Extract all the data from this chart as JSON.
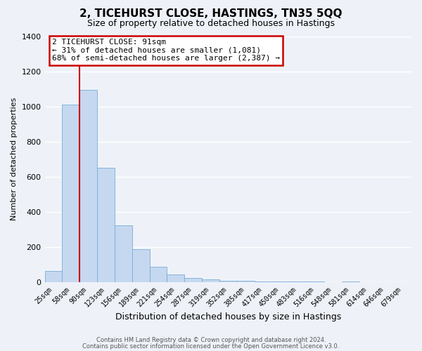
{
  "title": "2, TICEHURST CLOSE, HASTINGS, TN35 5QQ",
  "subtitle": "Size of property relative to detached houses in Hastings",
  "xlabel": "Distribution of detached houses by size in Hastings",
  "ylabel": "Number of detached properties",
  "bin_labels": [
    "25sqm",
    "58sqm",
    "90sqm",
    "123sqm",
    "156sqm",
    "189sqm",
    "221sqm",
    "254sqm",
    "287sqm",
    "319sqm",
    "352sqm",
    "385sqm",
    "417sqm",
    "450sqm",
    "483sqm",
    "516sqm",
    "548sqm",
    "581sqm",
    "614sqm",
    "646sqm",
    "679sqm"
  ],
  "bar_values": [
    65,
    1010,
    1095,
    650,
    325,
    190,
    90,
    45,
    25,
    15,
    10,
    10,
    5,
    5,
    5,
    5,
    0,
    5,
    0,
    0,
    0
  ],
  "bar_color": "#c5d8f0",
  "bar_edge_color": "#7aacd6",
  "vline_color": "#cc0000",
  "ylim": [
    0,
    1400
  ],
  "yticks": [
    0,
    200,
    400,
    600,
    800,
    1000,
    1200,
    1400
  ],
  "annotation_title": "2 TICEHURST CLOSE: 91sqm",
  "annotation_line1": "← 31% of detached houses are smaller (1,081)",
  "annotation_line2": "68% of semi-detached houses are larger (2,387) →",
  "annotation_box_color": "#cc0000",
  "footer_line1": "Contains HM Land Registry data © Crown copyright and database right 2024.",
  "footer_line2": "Contains public sector information licensed under the Open Government Licence v3.0.",
  "background_color": "#eef2f8",
  "grid_color": "#ffffff"
}
